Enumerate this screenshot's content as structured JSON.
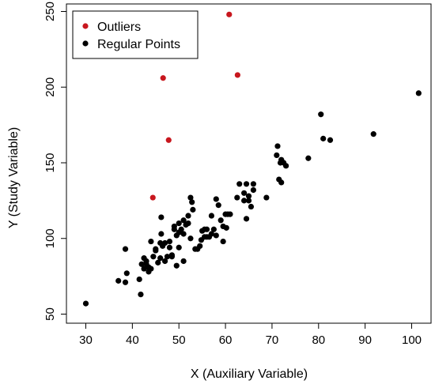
{
  "chart_data": {
    "type": "scatter",
    "title": "",
    "xlabel": "X (Auxiliary Variable)",
    "ylabel": "Y (Study Variable)",
    "xlim": [
      27,
      104
    ],
    "ylim": [
      50,
      255
    ],
    "xticks": [
      30,
      40,
      50,
      60,
      70,
      80,
      90,
      100
    ],
    "yticks": [
      50,
      100,
      150,
      200,
      250
    ],
    "grid": false,
    "legend_position": "top-left",
    "series": [
      {
        "name": "Outliers",
        "color": "#c8171e",
        "x": [
          60.8,
          46.6,
          62.6,
          47.8,
          44.4
        ],
        "y": [
          248,
          206,
          208,
          165,
          127
        ]
      },
      {
        "name": "Regular Points",
        "color": "#000000",
        "x": [
          101.5,
          91.8,
          80.5,
          81.0,
          82.5,
          71.2,
          71.0,
          72.0,
          72.5,
          73.0,
          71.5,
          72.0,
          71.8,
          77.8,
          68.8,
          63.0,
          64.5,
          66.0,
          62.5,
          65.0,
          64.0,
          65.5,
          66.0,
          65.0,
          64.5,
          64.0,
          61.0,
          60.0,
          58.0,
          58.5,
          57.0,
          59.0,
          60.5,
          59.5,
          58.0,
          57.0,
          56.0,
          55.0,
          54.0,
          55.5,
          56.5,
          57.5,
          59.5,
          60.2,
          52.5,
          52.8,
          52.0,
          53.0,
          51.5,
          50.5,
          51.0,
          52.0,
          50.0,
          49.5,
          49.0,
          48.5,
          48.0,
          49.5,
          48.5,
          47.5,
          47.0,
          46.5,
          46.0,
          45.5,
          46.2,
          45.0,
          44.5,
          43.5,
          43.0,
          44.0,
          45.0,
          46.0,
          47.0,
          48.0,
          50.0,
          51.0,
          53.5,
          54.5,
          50.0,
          49.0,
          42.5,
          43.0,
          42.0,
          41.5,
          43.5,
          44.0,
          42.5,
          41.8,
          38.5,
          38.8,
          37.0,
          38.5,
          30.0,
          46.2,
          54.8,
          56.0,
          55.5,
          52.5,
          51.0
        ],
        "y": [
          196,
          169,
          182,
          166,
          165,
          161,
          155,
          152,
          150,
          148,
          139,
          137,
          150,
          153,
          127,
          136,
          136,
          136,
          127,
          128,
          125,
          121,
          132,
          125,
          113,
          130,
          116,
          116,
          126,
          122,
          115,
          112,
          116,
          108,
          102,
          103,
          101,
          105,
          93,
          101,
          101,
          106,
          98,
          107,
          127,
          124,
          115,
          119,
          109,
          106,
          103,
          110,
          104,
          102,
          106,
          89,
          98,
          82,
          88,
          88,
          97,
          95,
          97,
          84,
          103,
          93,
          88,
          81,
          85,
          98,
          92,
          87,
          85,
          94,
          94,
          85,
          93,
          95,
          110,
          108,
          87,
          83,
          83,
          73,
          78,
          80,
          80,
          63,
          93,
          77,
          72,
          71,
          57,
          114,
          99,
          106,
          106,
          100,
          112
        ]
      }
    ]
  }
}
